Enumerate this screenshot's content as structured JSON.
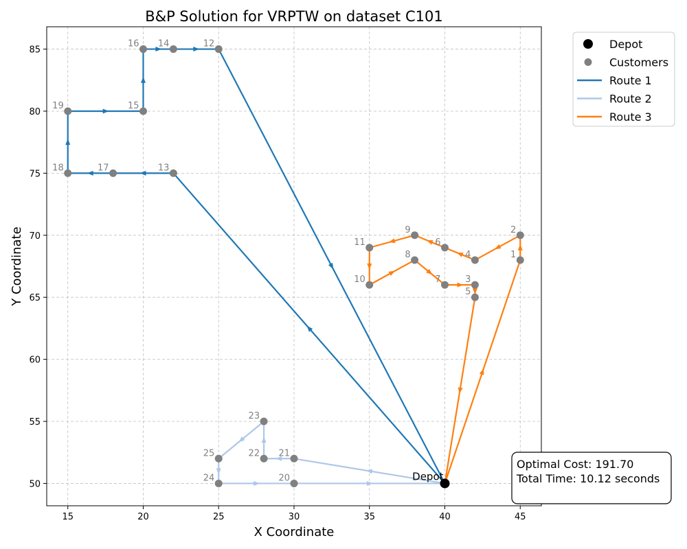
{
  "chart_data": {
    "type": "line",
    "title": "B&P Solution for VRPTW on dataset C101",
    "xlabel": "X Coordinate",
    "ylabel": "Y Coordinate",
    "xlim": [
      13.6,
      46.4
    ],
    "ylim": [
      48.2,
      86.8
    ],
    "xticks": [
      15,
      20,
      25,
      30,
      35,
      40,
      45
    ],
    "yticks": [
      50,
      55,
      60,
      65,
      70,
      75,
      80,
      85
    ],
    "grid": true,
    "legend_position": "outside-top-right",
    "depot": {
      "label": "Depot",
      "x": 40,
      "y": 50,
      "color": "#000000"
    },
    "customers": [
      {
        "id": "1",
        "x": 45,
        "y": 68
      },
      {
        "id": "2",
        "x": 45,
        "y": 70
      },
      {
        "id": "3",
        "x": 42,
        "y": 66
      },
      {
        "id": "4",
        "x": 42,
        "y": 68
      },
      {
        "id": "5",
        "x": 42,
        "y": 65
      },
      {
        "id": "6",
        "x": 40,
        "y": 69
      },
      {
        "id": "7",
        "x": 40,
        "y": 66
      },
      {
        "id": "8",
        "x": 38,
        "y": 68
      },
      {
        "id": "9",
        "x": 38,
        "y": 70
      },
      {
        "id": "10",
        "x": 35,
        "y": 66
      },
      {
        "id": "11",
        "x": 35,
        "y": 69
      },
      {
        "id": "12",
        "x": 25,
        "y": 85
      },
      {
        "id": "13",
        "x": 22,
        "y": 75
      },
      {
        "id": "14",
        "x": 22,
        "y": 85
      },
      {
        "id": "15",
        "x": 20,
        "y": 80
      },
      {
        "id": "16",
        "x": 20,
        "y": 85
      },
      {
        "id": "17",
        "x": 18,
        "y": 75
      },
      {
        "id": "18",
        "x": 15,
        "y": 75
      },
      {
        "id": "19",
        "x": 15,
        "y": 80
      },
      {
        "id": "20",
        "x": 30,
        "y": 50
      },
      {
        "id": "21",
        "x": 30,
        "y": 52
      },
      {
        "id": "22",
        "x": 28,
        "y": 52
      },
      {
        "id": "23",
        "x": 28,
        "y": 55
      },
      {
        "id": "24",
        "x": 25,
        "y": 50
      },
      {
        "id": "25",
        "x": 25,
        "y": 52
      }
    ],
    "customer_color": "#808080",
    "series": [
      {
        "name": "Route 1",
        "color": "#1f77b4",
        "points": [
          [
            40,
            50
          ],
          [
            22,
            75
          ],
          [
            18,
            75
          ],
          [
            15,
            75
          ],
          [
            15,
            80
          ],
          [
            20,
            80
          ],
          [
            20,
            85
          ],
          [
            22,
            85
          ],
          [
            25,
            85
          ],
          [
            40,
            50
          ]
        ]
      },
      {
        "name": "Route 2",
        "color": "#aec7e8",
        "points": [
          [
            40,
            50
          ],
          [
            30,
            52
          ],
          [
            28,
            52
          ],
          [
            28,
            55
          ],
          [
            25,
            52
          ],
          [
            25,
            50
          ],
          [
            30,
            50
          ],
          [
            40,
            50
          ]
        ]
      },
      {
        "name": "Route 3",
        "color": "#ff7f0e",
        "points": [
          [
            40,
            50
          ],
          [
            45,
            68
          ],
          [
            45,
            70
          ],
          [
            42,
            68
          ],
          [
            40,
            69
          ],
          [
            38,
            70
          ],
          [
            35,
            69
          ],
          [
            35,
            66
          ],
          [
            38,
            68
          ],
          [
            40,
            66
          ],
          [
            42,
            66
          ],
          [
            42,
            65
          ],
          [
            40,
            50
          ]
        ]
      }
    ],
    "legend": [
      {
        "label": "Depot",
        "kind": "depot"
      },
      {
        "label": "Customers",
        "kind": "customer"
      },
      {
        "label": "Route 1",
        "kind": "line",
        "series": 0
      },
      {
        "label": "Route 2",
        "kind": "line",
        "series": 1
      },
      {
        "label": "Route 3",
        "kind": "line",
        "series": 2
      }
    ],
    "annotation": [
      "Optimal Cost: 191.70",
      "Total Time: 10.12 seconds"
    ]
  }
}
